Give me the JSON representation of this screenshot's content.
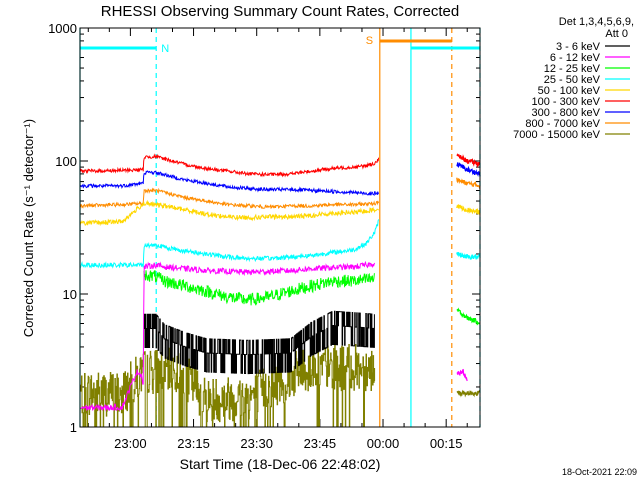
{
  "chart_data": {
    "type": "line",
    "title": "RHESSI Observing Summary Count Rates, Corrected",
    "xlabel": "Start Time (18-Dec-06 22:48:02)",
    "ylabel": "Corrected Count Rate (s⁻¹ detector⁻¹)",
    "x_units": "minutes after 22:48:02 UT",
    "xlim": [
      0,
      95
    ],
    "ylim": [
      1,
      1000
    ],
    "y_scale": "log",
    "x_tick_labels": [
      "23:00",
      "23:15",
      "23:30",
      "23:45",
      "00:00",
      "00:15"
    ],
    "y_tick_labels": [
      "1",
      "10",
      "100",
      "1000"
    ],
    "grid": false,
    "legend_position": "right",
    "legend_header": [
      "Det 1,3,4,5,6,9,",
      "Att 0"
    ],
    "timestamp": "18-Oct-2021 22:09",
    "flag_labels": [
      "N",
      "S"
    ],
    "segments": [
      {
        "name": "N",
        "color": "#00ffff",
        "style": "solid",
        "x": [
          0,
          18.1
        ]
      },
      {
        "name": "S",
        "color": "#ff8c00",
        "style": "solid",
        "x": [
          71.2,
          88.3
        ]
      },
      {
        "color": "#00ffff",
        "style": "solid",
        "x": [
          78.6,
          95
        ]
      }
    ],
    "boundaries": [
      {
        "x": 0,
        "color": "#00ffff",
        "style": "solid"
      },
      {
        "x": 18.1,
        "color": "#00ffff",
        "style": "dashed"
      },
      {
        "x": 71.2,
        "color": "#ff8c00",
        "style": "solid"
      },
      {
        "x": 78.6,
        "color": "#00ffff",
        "style": "solid"
      },
      {
        "x": 88.3,
        "color": "#ff8c00",
        "style": "dashed"
      },
      {
        "x": 95,
        "color": "#00ffff",
        "style": "dashed"
      }
    ],
    "series": [
      {
        "name": "3 - 6 keV",
        "color": "#000000",
        "noise": 0.16,
        "steps": true,
        "points": [
          [
            15.2,
            5.5
          ],
          [
            18,
            5.5
          ],
          [
            20,
            4.6
          ],
          [
            25,
            4.0
          ],
          [
            30,
            3.6
          ],
          [
            40,
            3.5
          ],
          [
            50,
            3.6
          ],
          [
            55,
            4.8
          ],
          [
            60,
            5.8
          ],
          [
            67,
            5.6
          ],
          [
            70,
            5.5
          ]
        ]
      },
      {
        "name": "6 - 12 keV",
        "color": "#ff00ff",
        "noise": 0.05,
        "points": [
          [
            0,
            1.4
          ],
          [
            10,
            1.4
          ],
          [
            12.5,
            2.2
          ],
          [
            13.5,
            2.6
          ],
          [
            14.5,
            2.5
          ],
          [
            15,
            2.1
          ],
          [
            15.2,
            16
          ],
          [
            18,
            16.5
          ],
          [
            20,
            16
          ],
          [
            25,
            15.5
          ],
          [
            30,
            15
          ],
          [
            40,
            14.6
          ],
          [
            50,
            15
          ],
          [
            55,
            15.5
          ],
          [
            60,
            15.8
          ],
          [
            65,
            16
          ],
          [
            68,
            16.5
          ],
          [
            70,
            17
          ]
        ]
      },
      {
        "name": "12 - 25 keV",
        "color": "#00ff00",
        "noise": 0.11,
        "points": [
          [
            15.2,
            14
          ],
          [
            18,
            13.5
          ],
          [
            20,
            12.5
          ],
          [
            25,
            11.5
          ],
          [
            30,
            10.5
          ],
          [
            35,
            9.5
          ],
          [
            40,
            9
          ],
          [
            45,
            9.5
          ],
          [
            50,
            10.5
          ],
          [
            55,
            11.5
          ],
          [
            60,
            12.5
          ],
          [
            65,
            12.5
          ],
          [
            70,
            13
          ]
        ]
      },
      {
        "name": "25 - 50 keV",
        "color": "#00ffff",
        "noise": 0.04,
        "points": [
          [
            0,
            16.5
          ],
          [
            15,
            16.5
          ],
          [
            15.2,
            23
          ],
          [
            18,
            23.5
          ],
          [
            20,
            22.5
          ],
          [
            25,
            21
          ],
          [
            30,
            20
          ],
          [
            35,
            19
          ],
          [
            40,
            18.5
          ],
          [
            45,
            18.5
          ],
          [
            50,
            19
          ],
          [
            55,
            19.5
          ],
          [
            60,
            20.5
          ],
          [
            65,
            21.5
          ],
          [
            68,
            24
          ],
          [
            70,
            29
          ],
          [
            71,
            36
          ]
        ]
      },
      {
        "name": "50 - 100 keV",
        "color": "#ffd700",
        "noise": 0.04,
        "points": [
          [
            0,
            34
          ],
          [
            10,
            35
          ],
          [
            15.2,
            48
          ],
          [
            20,
            46
          ],
          [
            25,
            43
          ],
          [
            30,
            40
          ],
          [
            35,
            38
          ],
          [
            40,
            37.5
          ],
          [
            45,
            38
          ],
          [
            50,
            38
          ],
          [
            55,
            39
          ],
          [
            60,
            40.5
          ],
          [
            65,
            41
          ],
          [
            70,
            43
          ],
          [
            71,
            44
          ]
        ]
      },
      {
        "name": "100 - 300 keV",
        "color": "#ff0000",
        "noise": 0.03,
        "points": [
          [
            0,
            84
          ],
          [
            10,
            85
          ],
          [
            15,
            86
          ],
          [
            15.2,
            107
          ],
          [
            18,
            108
          ],
          [
            20,
            104
          ],
          [
            25,
            94
          ],
          [
            30,
            88
          ],
          [
            35,
            84
          ],
          [
            40,
            80
          ],
          [
            45,
            79
          ],
          [
            50,
            80
          ],
          [
            55,
            84
          ],
          [
            60,
            88
          ],
          [
            65,
            90
          ],
          [
            68,
            92
          ],
          [
            70,
            96
          ],
          [
            71,
            104
          ]
        ]
      },
      {
        "name": "300 - 800 keV",
        "color": "#0000ff",
        "noise": 0.03,
        "points": [
          [
            0,
            65
          ],
          [
            10,
            65
          ],
          [
            15,
            68
          ],
          [
            15.2,
            82
          ],
          [
            18,
            82
          ],
          [
            20,
            79
          ],
          [
            25,
            72
          ],
          [
            30,
            68
          ],
          [
            35,
            64
          ],
          [
            40,
            62
          ],
          [
            45,
            61
          ],
          [
            50,
            61
          ],
          [
            55,
            60
          ],
          [
            60,
            59
          ],
          [
            65,
            58
          ],
          [
            68,
            57
          ],
          [
            71,
            57
          ]
        ]
      },
      {
        "name": "800 - 7000 keV",
        "color": "#ff8c00",
        "noise": 0.03,
        "points": [
          [
            0,
            46
          ],
          [
            10,
            47
          ],
          [
            15,
            48
          ],
          [
            15.2,
            60
          ],
          [
            18,
            60
          ],
          [
            20,
            58
          ],
          [
            25,
            53
          ],
          [
            30,
            50
          ],
          [
            35,
            47
          ],
          [
            40,
            46
          ],
          [
            45,
            45
          ],
          [
            50,
            46
          ],
          [
            55,
            46
          ],
          [
            60,
            47
          ],
          [
            65,
            47
          ],
          [
            70,
            48
          ],
          [
            71,
            50
          ]
        ]
      },
      {
        "name": "7000 - 15000 keV",
        "color": "#808000",
        "noise": 0.4,
        "dropout": true,
        "points": [
          [
            0,
            1.8
          ],
          [
            10,
            1.8
          ],
          [
            15,
            2.6
          ],
          [
            20,
            2.7
          ],
          [
            25,
            2.4
          ],
          [
            30,
            1.6
          ],
          [
            40,
            1.7
          ],
          [
            50,
            2.4
          ],
          [
            55,
            2.8
          ],
          [
            60,
            2.8
          ],
          [
            65,
            2.8
          ],
          [
            70,
            2.8
          ]
        ]
      }
    ],
    "post_segments": [
      {
        "color": "#ff0000",
        "points": [
          [
            89.5,
            110
          ],
          [
            92,
            100
          ],
          [
            95,
            95
          ]
        ]
      },
      {
        "color": "#0000ff",
        "points": [
          [
            89.5,
            95
          ],
          [
            92,
            86
          ],
          [
            95,
            80
          ]
        ]
      },
      {
        "color": "#ff8c00",
        "points": [
          [
            89.5,
            72
          ],
          [
            92,
            68
          ],
          [
            95,
            65
          ]
        ]
      },
      {
        "color": "#ffd700",
        "points": [
          [
            89.5,
            46
          ],
          [
            92,
            43
          ],
          [
            95,
            41
          ]
        ]
      },
      {
        "color": "#00ffff",
        "points": [
          [
            89.5,
            20
          ],
          [
            92,
            19
          ],
          [
            95,
            19
          ]
        ]
      },
      {
        "color": "#00ff00",
        "points": [
          [
            89.5,
            7.6
          ],
          [
            92,
            6.6
          ],
          [
            95,
            6.1
          ]
        ]
      },
      {
        "color": "#ff00ff",
        "points": [
          [
            89.5,
            2.5
          ],
          [
            91,
            2.6
          ],
          [
            92,
            2.2
          ]
        ]
      },
      {
        "color": "#808000",
        "points": [
          [
            89.5,
            1.8
          ],
          [
            95,
            1.8
          ]
        ]
      }
    ]
  }
}
